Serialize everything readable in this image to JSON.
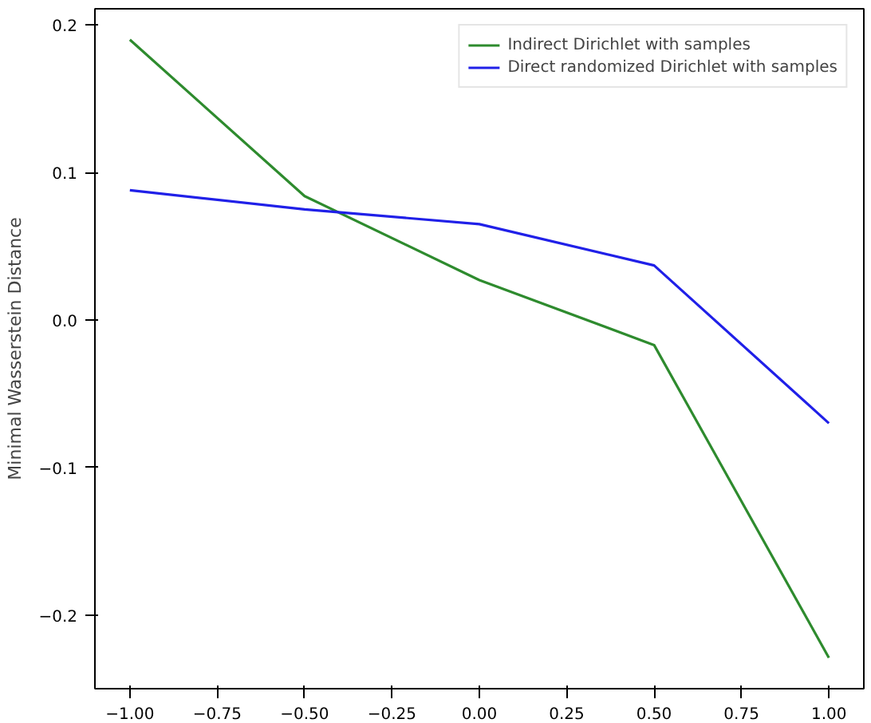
{
  "chart_data": {
    "type": "line",
    "ylabel": "Minimal Wasserstein Distance",
    "x": [
      -1.0,
      -0.5,
      0.0,
      0.5,
      1.0
    ],
    "series": [
      {
        "name": "Indirect Dirichlet with samples",
        "color": "#2e8b2e",
        "values": [
          0.19,
          0.084,
          0.027,
          -0.017,
          -0.229
        ]
      },
      {
        "name": "Direct randomized Dirichlet with samples",
        "color": "#2020e8",
        "values": [
          0.088,
          0.075,
          0.065,
          0.037,
          -0.07
        ]
      }
    ],
    "xlim": [
      -1.1,
      1.1
    ],
    "ylim": [
      -0.25,
      0.211
    ],
    "xticks": [
      {
        "value": -1,
        "label": "−1.00"
      },
      {
        "value": -0.75,
        "label": "−0.75"
      },
      {
        "value": -0.5,
        "label": "−0.50"
      },
      {
        "value": -0.25,
        "label": "−0.25"
      },
      {
        "value": 0,
        "label": "0.00"
      },
      {
        "value": 0.25,
        "label": "0.25"
      },
      {
        "value": 0.5,
        "label": "0.50"
      },
      {
        "value": 0.75,
        "label": "0.75"
      },
      {
        "value": 1,
        "label": "1.00"
      }
    ],
    "yticks": [
      {
        "value": -0.2,
        "label": "−0.2"
      },
      {
        "value": -0.1,
        "label": "−0.1"
      },
      {
        "value": 0,
        "label": "0.0"
      },
      {
        "value": 0.1,
        "label": "0.1"
      },
      {
        "value": 0.2,
        "label": "0.2"
      }
    ],
    "legend": "top right",
    "grid": false
  }
}
